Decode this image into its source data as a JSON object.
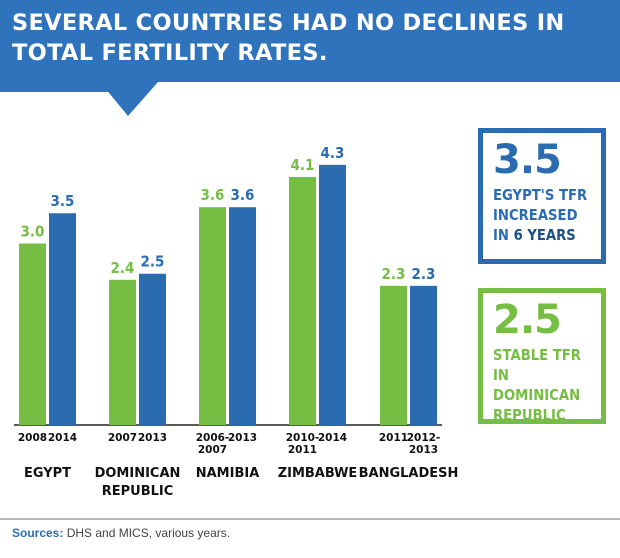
{
  "header": {
    "title": "SEVERAL COUNTRIES HAD NO DECLINES IN TOTAL FERTILITY RATES."
  },
  "colors": {
    "green": "#76bd43",
    "blue": "#2b6cb0",
    "banner": "#2f73bd",
    "banner_dark": "#245a96"
  },
  "chart_data": {
    "type": "bar",
    "title": "",
    "xlabel": "",
    "ylabel": "",
    "grid": false,
    "countries": [
      {
        "name": "EGYPT",
        "bars": [
          {
            "year": "2008",
            "value": 3.0,
            "label": "3.0",
            "color": "green"
          },
          {
            "year": "2014",
            "value": 3.5,
            "label": "3.5",
            "color": "blue"
          }
        ]
      },
      {
        "name": "DOMINICAN REPUBLIC",
        "bars": [
          {
            "year": "2007",
            "value": 2.4,
            "label": "2.4",
            "color": "green"
          },
          {
            "year": "2013",
            "value": 2.5,
            "label": "2.5",
            "color": "blue"
          }
        ]
      },
      {
        "name": "NAMIBIA",
        "bars": [
          {
            "year": "2006-2007",
            "value": 3.6,
            "label": "3.6",
            "color": "green"
          },
          {
            "year": "2013",
            "value": 3.6,
            "label": "3.6",
            "color": "blue"
          }
        ]
      },
      {
        "name": "ZIMBABWE",
        "bars": [
          {
            "year": "2010-2011",
            "value": 4.1,
            "label": "4.1",
            "color": "green"
          },
          {
            "year": "2014",
            "value": 4.3,
            "label": "4.3",
            "color": "blue"
          }
        ]
      },
      {
        "name": "BANGLADESH",
        "bars": [
          {
            "year": "2011",
            "value": 2.3,
            "label": "2.3",
            "color": "green"
          },
          {
            "year": "2012-2013",
            "value": 2.3,
            "label": "2.3",
            "color": "blue"
          }
        ]
      }
    ]
  },
  "callouts": [
    {
      "value": "3.5",
      "text": "EGYPT'S TFR INCREASED IN",
      "emphasis": "6 YEARS"
    },
    {
      "value": "2.5",
      "text": "STABLE TFR IN DOMINICAN REPUBLIC"
    }
  ],
  "footer": {
    "source_label": "Sources:",
    "source_text": "DHS and MICS, various years."
  }
}
